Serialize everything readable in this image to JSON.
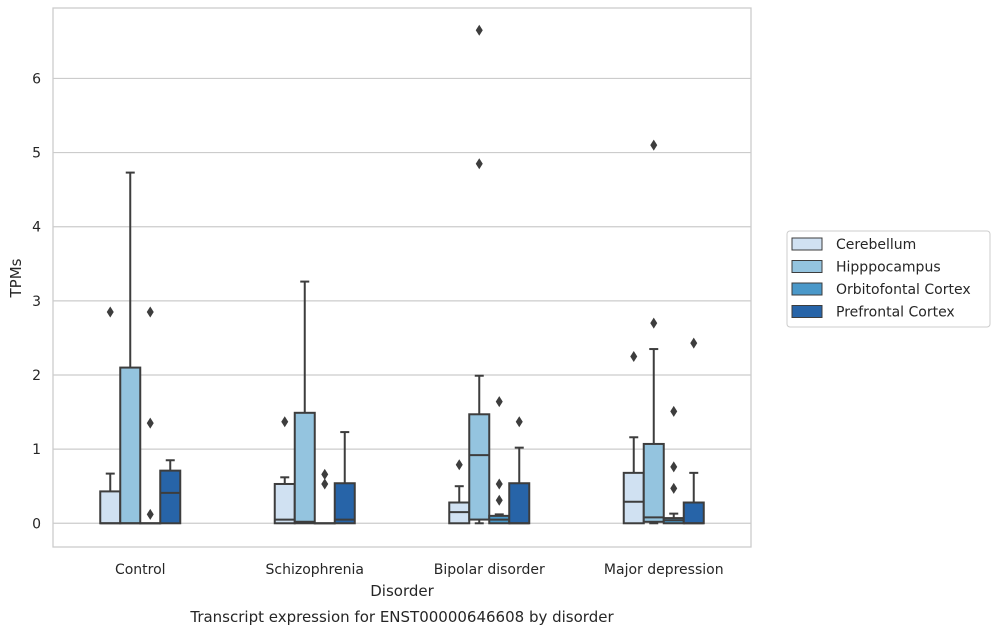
{
  "chart_data": {
    "type": "box",
    "xlabel": "Disorder",
    "ylabel": "TPMs",
    "caption": "Transcript expression for ENST00000646608 by disorder",
    "ylim": [
      -0.32,
      6.95
    ],
    "yticks": [
      0,
      1,
      2,
      3,
      4,
      5,
      6
    ],
    "grid": true,
    "legend_position": "right",
    "categories": [
      "Control",
      "Schizophrenia",
      "Bipolar disorder",
      "Major depression"
    ],
    "series": [
      {
        "name": "Cerebellum",
        "color": "#d0e1f2",
        "boxes": [
          {
            "whisker_low": 0,
            "q1": 0,
            "median": 0,
            "q3": 0.43,
            "whisker_high": 0.67,
            "outliers": [
              2.85
            ]
          },
          {
            "whisker_low": 0,
            "q1": 0,
            "median": 0.05,
            "q3": 0.53,
            "whisker_high": 0.62,
            "outliers": [
              1.37
            ]
          },
          {
            "whisker_low": 0,
            "q1": 0,
            "median": 0.15,
            "q3": 0.28,
            "whisker_high": 0.5,
            "outliers": [
              0.79
            ]
          },
          {
            "whisker_low": 0,
            "q1": 0,
            "median": 0.29,
            "q3": 0.68,
            "whisker_high": 1.16,
            "outliers": [
              2.25
            ]
          }
        ]
      },
      {
        "name": "Hipppocampus",
        "color": "#94c4df",
        "boxes": [
          {
            "whisker_low": 0,
            "q1": 0,
            "median": 0,
            "q3": 2.1,
            "whisker_high": 4.73,
            "outliers": []
          },
          {
            "whisker_low": 0,
            "q1": 0,
            "median": 0.02,
            "q3": 1.49,
            "whisker_high": 3.26,
            "outliers": []
          },
          {
            "whisker_low": 0,
            "q1": 0.05,
            "median": 0.92,
            "q3": 1.47,
            "whisker_high": 1.99,
            "outliers": [
              4.85,
              6.65
            ]
          },
          {
            "whisker_low": 0,
            "q1": 0.02,
            "median": 0.08,
            "q3": 1.07,
            "whisker_high": 2.35,
            "outliers": [
              2.7,
              5.1
            ]
          }
        ]
      },
      {
        "name": "Orbitofontal Cortex",
        "color": "#4a98c9",
        "boxes": [
          {
            "whisker_low": 0,
            "q1": 0,
            "median": 0,
            "q3": 0,
            "whisker_high": 0,
            "outliers": [
              0.12,
              1.35,
              2.85
            ]
          },
          {
            "whisker_low": 0,
            "q1": 0,
            "median": 0,
            "q3": 0,
            "whisker_high": 0,
            "outliers": [
              0.53,
              0.66
            ]
          },
          {
            "whisker_low": 0,
            "q1": 0,
            "median": 0.05,
            "q3": 0.1,
            "whisker_high": 0.12,
            "outliers": [
              0.31,
              0.53,
              1.64
            ]
          },
          {
            "whisker_low": 0,
            "q1": 0,
            "median": 0.04,
            "q3": 0.07,
            "whisker_high": 0.13,
            "outliers": [
              0.47,
              0.76,
              1.51
            ]
          }
        ]
      },
      {
        "name": "Prefrontal Cortex",
        "color": "#2764a8",
        "boxes": [
          {
            "whisker_low": 0,
            "q1": 0,
            "median": 0.41,
            "q3": 0.71,
            "whisker_high": 0.85,
            "outliers": []
          },
          {
            "whisker_low": 0,
            "q1": 0,
            "median": 0.05,
            "q3": 0.54,
            "whisker_high": 1.23,
            "outliers": []
          },
          {
            "whisker_low": 0,
            "q1": 0,
            "median": 0,
            "q3": 0.54,
            "whisker_high": 1.02,
            "outliers": [
              1.37
            ]
          },
          {
            "whisker_low": 0,
            "q1": 0,
            "median": 0,
            "q3": 0.28,
            "whisker_high": 0.68,
            "outliers": [
              2.43
            ]
          }
        ]
      }
    ]
  }
}
